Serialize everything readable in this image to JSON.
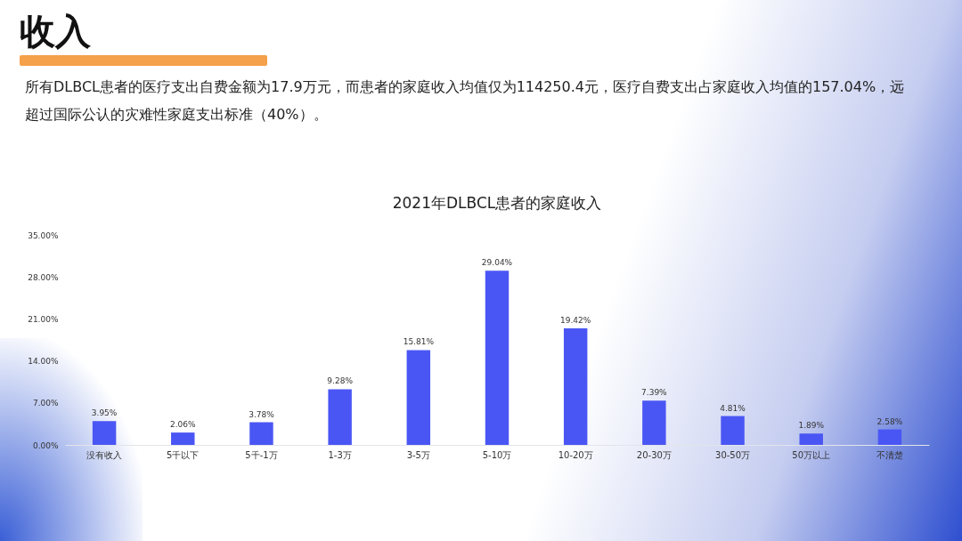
{
  "chart_data": {
    "type": "bar",
    "title": "2021年DLBCL患者的家庭收入",
    "annotations": [
      "收入",
      "所有DLBCL患者的医疗支出自费金额为17.9万元，而患者的家庭收入均值仅为114250.4元，医疗自费支出占家庭收入均值的157.04%，远超过国际公认的灾难性家庭支出标准（40%）。"
    ],
    "categories": [
      "没有收入",
      "5千以下",
      "5千-1万",
      "1-3万",
      "3-5万",
      "5-10万",
      "10-20万",
      "20-30万",
      "30-50万",
      "50万以上",
      "不清楚"
    ],
    "values": [
      3.95,
      2.06,
      3.78,
      9.28,
      15.81,
      29.04,
      19.42,
      7.39,
      4.81,
      1.89,
      2.58
    ],
    "value_labels": [
      "3.95%",
      "2.06%",
      "3.78%",
      "9.28%",
      "15.81%",
      "29.04%",
      "19.42%",
      "7.39%",
      "4.81%",
      "1.89%",
      "2.58%"
    ],
    "color": "#4a56f4",
    "ylim": [
      0,
      35
    ],
    "yticks": [
      {
        "value": 0,
        "label": "0.00%"
      },
      {
        "value": 7,
        "label": "7.00%"
      },
      {
        "value": 14,
        "label": "14.00%"
      },
      {
        "value": 21,
        "label": "21.00%"
      },
      {
        "value": 28,
        "label": "28.00%"
      },
      {
        "value": 35,
        "label": "35.00%"
      }
    ],
    "grid": false
  }
}
